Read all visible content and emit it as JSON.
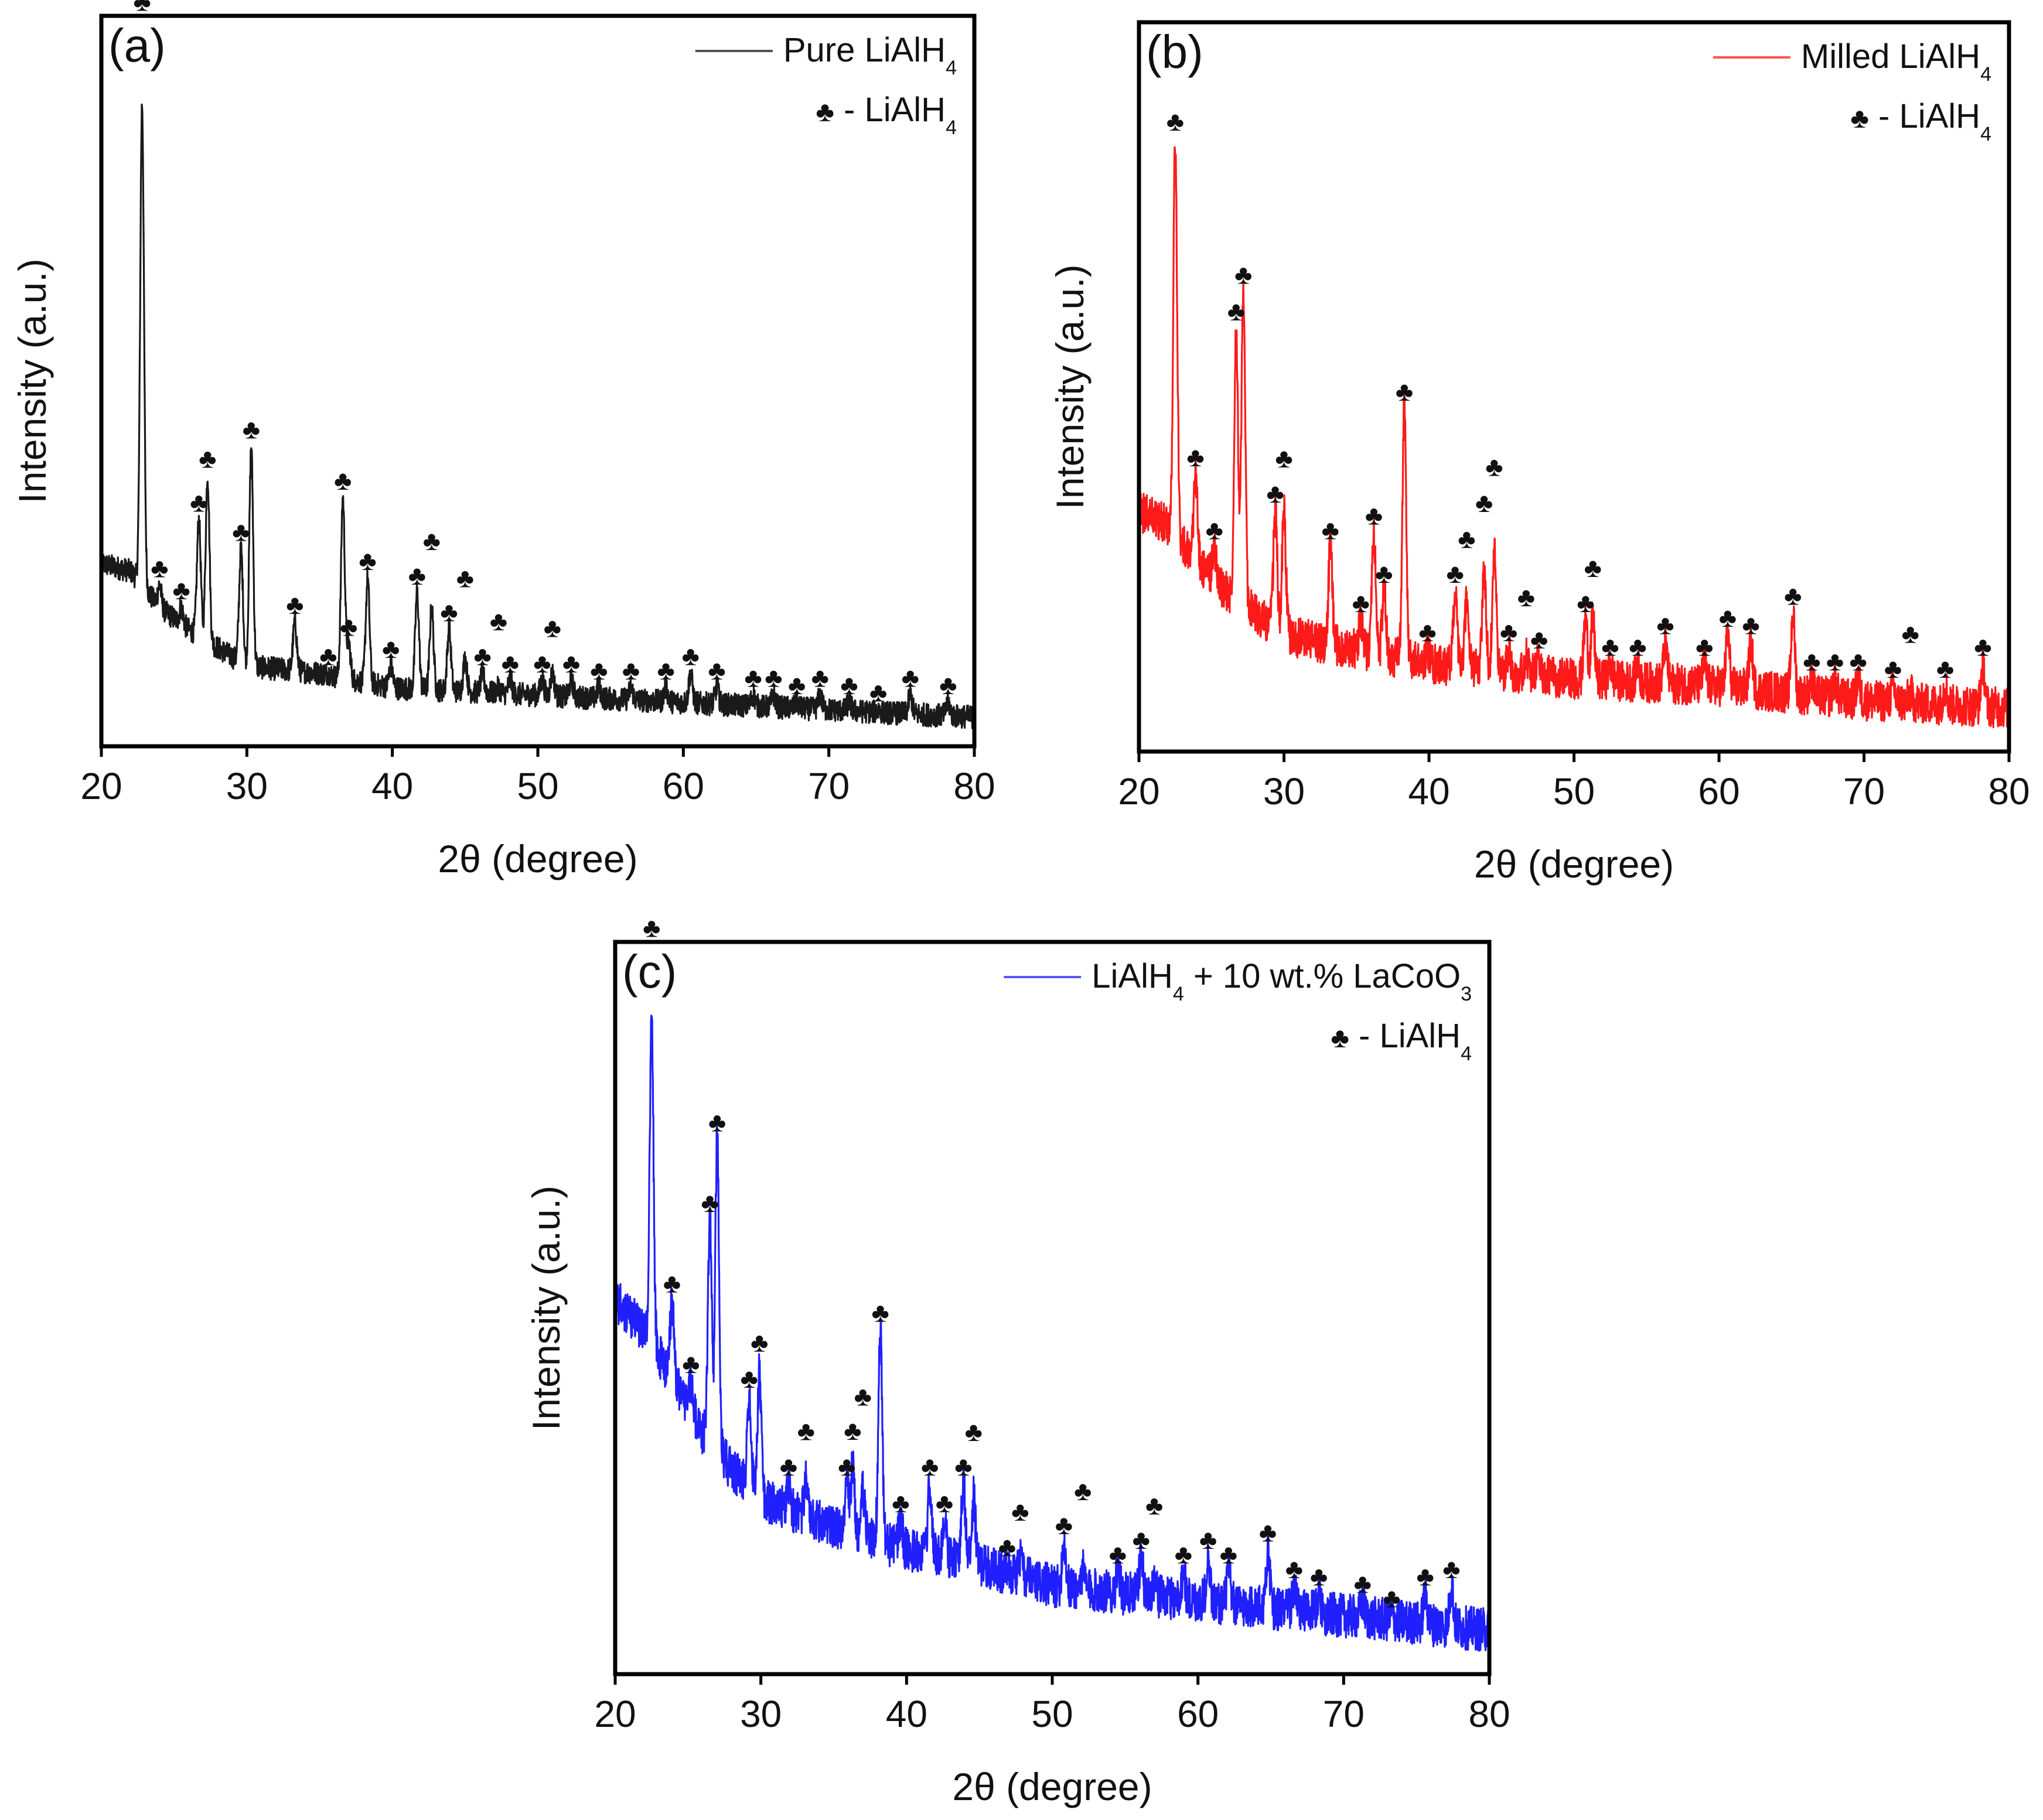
{
  "chart_data": [
    {
      "type": "line",
      "panel_label": "(a)",
      "xlabel": "2θ (degree)",
      "ylabel": "Intensity (a.u.)",
      "xlim": [
        20,
        80
      ],
      "ylim": [
        0,
        100
      ],
      "xticks": [
        20,
        30,
        40,
        50,
        60,
        70,
        80
      ],
      "grid": false,
      "legend_position": "top-right",
      "series": [
        {
          "name": "Pure LiAlH4",
          "legend_text": "Pure LiAlH",
          "legend_sub": "4",
          "color": "#1a1a1a"
        }
      ],
      "marker_legend": {
        "symbol": "♣",
        "text": " - LiAlH",
        "sub": "4"
      },
      "background": [
        [
          20,
          25
        ],
        [
          22,
          24
        ],
        [
          24,
          19
        ],
        [
          26,
          16
        ],
        [
          30,
          11
        ],
        [
          35,
          10
        ],
        [
          40,
          8
        ],
        [
          50,
          7
        ],
        [
          60,
          6
        ],
        [
          70,
          5
        ],
        [
          80,
          4
        ]
      ],
      "noise": 1.6,
      "peaks": [
        [
          22.8,
          88
        ],
        [
          24.0,
          22
        ],
        [
          25.5,
          19
        ],
        [
          26.7,
          31
        ],
        [
          27.3,
          37
        ],
        [
          29.6,
          27
        ],
        [
          30.3,
          41
        ],
        [
          33.3,
          17
        ],
        [
          35.6,
          10
        ],
        [
          36.6,
          34
        ],
        [
          37.0,
          14
        ],
        [
          38.3,
          23
        ],
        [
          39.9,
          11
        ],
        [
          41.7,
          21
        ],
        [
          42.7,
          19
        ],
        [
          43.9,
          16
        ],
        [
          45.0,
          12
        ],
        [
          46.2,
          10
        ],
        [
          47.3,
          8
        ],
        [
          48.1,
          9
        ],
        [
          50.3,
          9
        ],
        [
          51.0,
          10
        ],
        [
          52.3,
          9
        ],
        [
          54.2,
          8
        ],
        [
          56.4,
          8
        ],
        [
          58.8,
          8
        ],
        [
          60.5,
          10
        ],
        [
          62.3,
          8
        ],
        [
          64.8,
          7
        ],
        [
          66.2,
          7
        ],
        [
          67.8,
          6
        ],
        [
          69.4,
          7
        ],
        [
          71.4,
          6
        ],
        [
          73.4,
          5
        ],
        [
          75.6,
          7
        ],
        [
          78.2,
          6
        ]
      ]
    },
    {
      "type": "line",
      "panel_label": "(b)",
      "xlabel": "2θ (degree)",
      "ylabel": "Intensity (a.u.)",
      "xlim": [
        20,
        80
      ],
      "ylim": [
        0,
        100
      ],
      "xticks": [
        20,
        30,
        40,
        50,
        60,
        70,
        80
      ],
      "grid": false,
      "legend_position": "top-right",
      "series": [
        {
          "name": "Milled LiAlH4",
          "legend_text": "Milled LiAlH",
          "legend_sub": "4",
          "color": "#ff1a1a"
        }
      ],
      "marker_legend": {
        "symbol": "♣",
        "text": " - LiAlH",
        "sub": "4"
      },
      "background": [
        [
          20,
          33
        ],
        [
          22,
          31
        ],
        [
          24,
          26
        ],
        [
          26,
          22
        ],
        [
          30,
          16
        ],
        [
          35,
          14
        ],
        [
          40,
          12
        ],
        [
          50,
          10
        ],
        [
          60,
          9
        ],
        [
          70,
          7
        ],
        [
          80,
          6
        ]
      ],
      "noise": 2.8,
      "peaks": [
        [
          22.5,
          84
        ],
        [
          23.9,
          38
        ],
        [
          25.2,
          28
        ],
        [
          26.7,
          58
        ],
        [
          27.2,
          63
        ],
        [
          29.4,
          33
        ],
        [
          30.0,
          33
        ],
        [
          33.2,
          28
        ],
        [
          35.3,
          18
        ],
        [
          36.2,
          30
        ],
        [
          36.9,
          22
        ],
        [
          38.3,
          47
        ],
        [
          39.9,
          14
        ],
        [
          41.8,
          22
        ],
        [
          42.6,
          21
        ],
        [
          43.8,
          25
        ],
        [
          44.5,
          28
        ],
        [
          45.5,
          14
        ],
        [
          46.7,
          13
        ],
        [
          47.6,
          13
        ],
        [
          50.8,
          18
        ],
        [
          51.3,
          18
        ],
        [
          52.5,
          12
        ],
        [
          54.4,
          12
        ],
        [
          56.3,
          15
        ],
        [
          59.0,
          12
        ],
        [
          60.6,
          16
        ],
        [
          62.2,
          15
        ],
        [
          65.1,
          19
        ],
        [
          66.4,
          10
        ],
        [
          68.0,
          10
        ],
        [
          69.6,
          10
        ],
        [
          72.0,
          9
        ],
        [
          73.2,
          8
        ],
        [
          75.6,
          9
        ],
        [
          78.2,
          12
        ]
      ]
    },
    {
      "type": "line",
      "panel_label": "(c)",
      "xlabel": "2θ (degree)",
      "ylabel": "Intensity (a.u.)",
      "xlim": [
        20,
        80
      ],
      "ylim": [
        0,
        100
      ],
      "xticks": [
        20,
        30,
        40,
        50,
        60,
        70,
        80
      ],
      "grid": false,
      "legend_position": "top-right",
      "series": [
        {
          "name": "LiAlH4 + 10 wt.% LaCoO3",
          "legend_text": "LiAlH",
          "legend_sub": "4",
          "legend_text2": " + 10 wt.% LaCoO",
          "legend_sub2": "3",
          "color": "#1f1fff"
        }
      ],
      "marker_legend": {
        "symbol": "♣",
        "text": " - LiAlH",
        "sub": "4"
      },
      "background": [
        [
          20,
          51
        ],
        [
          22,
          47
        ],
        [
          24,
          40
        ],
        [
          26,
          33
        ],
        [
          28,
          28
        ],
        [
          30,
          24
        ],
        [
          35,
          20
        ],
        [
          40,
          17
        ],
        [
          45,
          15
        ],
        [
          50,
          12
        ],
        [
          60,
          10
        ],
        [
          70,
          8
        ],
        [
          80,
          6
        ]
      ],
      "noise": 3.0,
      "peaks": [
        [
          22.5,
          89
        ],
        [
          23.9,
          51
        ],
        [
          25.2,
          40
        ],
        [
          26.5,
          62
        ],
        [
          27.0,
          73
        ],
        [
          29.2,
          38
        ],
        [
          29.9,
          41
        ],
        [
          31.9,
          26
        ],
        [
          33.1,
          27
        ],
        [
          35.9,
          26
        ],
        [
          36.3,
          28
        ],
        [
          37.0,
          25
        ],
        [
          38.2,
          47
        ],
        [
          39.6,
          21
        ],
        [
          41.6,
          26
        ],
        [
          42.6,
          21
        ],
        [
          43.9,
          26
        ],
        [
          44.6,
          24
        ],
        [
          46.9,
          15
        ],
        [
          47.8,
          16
        ],
        [
          50.8,
          18
        ],
        [
          52.1,
          14
        ],
        [
          54.5,
          14
        ],
        [
          56.1,
          16
        ],
        [
          57.0,
          13
        ],
        [
          59.0,
          14
        ],
        [
          60.7,
          16
        ],
        [
          62.1,
          14
        ],
        [
          64.8,
          17
        ],
        [
          66.6,
          12
        ],
        [
          68.3,
          11
        ],
        [
          71.3,
          10
        ],
        [
          73.3,
          8
        ],
        [
          75.6,
          11
        ],
        [
          77.4,
          12
        ]
      ]
    }
  ]
}
